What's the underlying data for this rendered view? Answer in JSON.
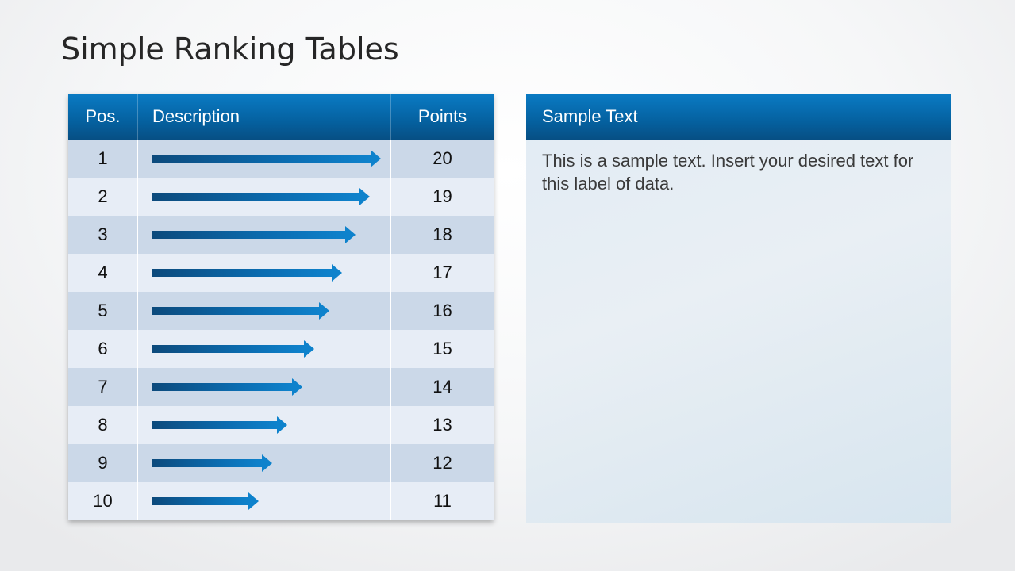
{
  "slide": {
    "title": "Simple Ranking Tables"
  },
  "ranking_table": {
    "headers": {
      "position": "Pos.",
      "description": "Description",
      "points": "Points"
    },
    "rows": [
      {
        "position": "1",
        "points": "20",
        "bar_fraction": 1.0
      },
      {
        "position": "2",
        "points": "19",
        "bar_fraction": 0.95
      },
      {
        "position": "3",
        "points": "18",
        "bar_fraction": 0.89
      },
      {
        "position": "4",
        "points": "17",
        "bar_fraction": 0.83
      },
      {
        "position": "5",
        "points": "16",
        "bar_fraction": 0.775
      },
      {
        "position": "6",
        "points": "15",
        "bar_fraction": 0.71
      },
      {
        "position": "7",
        "points": "14",
        "bar_fraction": 0.655
      },
      {
        "position": "8",
        "points": "13",
        "bar_fraction": 0.59
      },
      {
        "position": "9",
        "points": "12",
        "bar_fraction": 0.525
      },
      {
        "position": "10",
        "points": "11",
        "bar_fraction": 0.465
      }
    ],
    "colors": {
      "header": "#0561a0",
      "row_odd": "#cbd8e8",
      "row_even": "#e7edf6",
      "arrow_dark": "#0c4a7c",
      "arrow_light": "#0e82cc"
    }
  },
  "text_panel": {
    "title": "Sample Text",
    "body": "This is a sample text. Insert your desired text for this label of data."
  }
}
